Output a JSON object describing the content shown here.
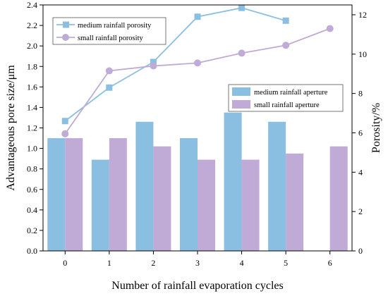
{
  "chart_data": {
    "type": "bar",
    "categories": [
      "0",
      "1",
      "2",
      "3",
      "4",
      "5",
      "6"
    ],
    "xlabel": "Number of rainfall evaporation cycles",
    "ylabel_left": "Advantageous pore size/μm",
    "ylabel_right": "Porosity/%",
    "ylim_left": [
      0,
      2.4
    ],
    "yticks_left": [
      "0.0",
      "0.2",
      "0.4",
      "0.6",
      "0.8",
      "1.0",
      "1.2",
      "1.4",
      "1.6",
      "1.8",
      "2.0",
      "2.2",
      "2.4"
    ],
    "ylim_right": [
      0,
      12.5
    ],
    "yticks_right": [
      "0",
      "2",
      "4",
      "6",
      "8",
      "10",
      "12"
    ],
    "grid": false,
    "bar_series": [
      {
        "name": "medium rainfall aperture",
        "color": "#8bbfe1",
        "values": [
          1.1,
          0.89,
          1.26,
          1.1,
          1.35,
          1.26,
          null
        ]
      },
      {
        "name": "small rainfall aperture",
        "color": "#bfabd5",
        "values": [
          1.1,
          1.1,
          1.02,
          0.89,
          0.89,
          0.95,
          1.02
        ]
      }
    ],
    "line_series": [
      {
        "name": "medium rainfall porosity",
        "color": "#8bbfe1",
        "marker": "square",
        "values": [
          6.6,
          8.3,
          9.6,
          11.9,
          12.35,
          11.7,
          null
        ]
      },
      {
        "name": "small rainfall porosity",
        "color": "#bfabd5",
        "marker": "circle",
        "values": [
          5.95,
          9.15,
          9.4,
          9.55,
          10.05,
          10.45,
          11.3
        ]
      }
    ],
    "line_legend_position": "top-left",
    "bar_legend_position": "right"
  }
}
